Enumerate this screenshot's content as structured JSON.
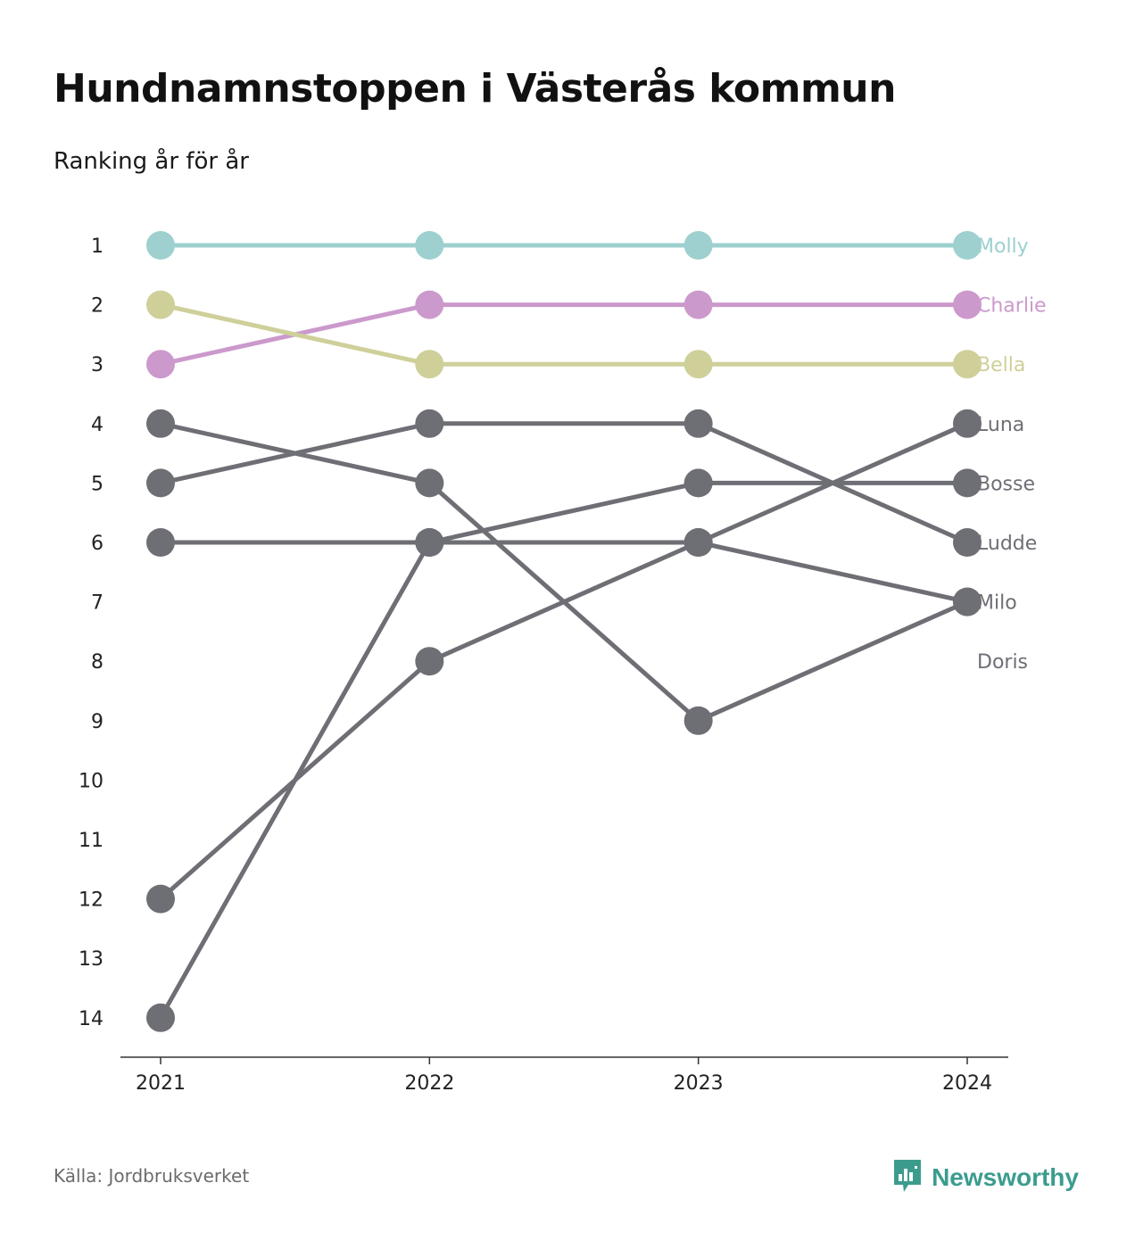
{
  "title": "Hundnamnstoppen i Västerås kommun",
  "subtitle": "Ranking år för år",
  "source": "Källa: Jordbruksverket",
  "brand": "Newsworthy",
  "chart_data": {
    "type": "line",
    "subtype": "bump",
    "x": [
      "2021",
      "2022",
      "2023",
      "2024"
    ],
    "y_ticks": [
      "1",
      "2",
      "3",
      "4",
      "5",
      "6",
      "7",
      "8",
      "9",
      "10",
      "11",
      "12",
      "13",
      "14"
    ],
    "ylim": [
      1,
      14
    ],
    "y_inverted": true,
    "grid": false,
    "legend": "direct labels at right end",
    "series": [
      {
        "name": "Molly",
        "values": [
          1,
          1,
          1,
          1
        ],
        "color": "#9dd0cf"
      },
      {
        "name": "Charlie",
        "values": [
          3,
          2,
          2,
          2
        ],
        "color": "#cc99cc"
      },
      {
        "name": "Bella",
        "values": [
          2,
          3,
          3,
          3
        ],
        "color": "#cfcf9a"
      },
      {
        "name": "Luna",
        "values": [
          14,
          6,
          6,
          4
        ],
        "color": "#6e6e75"
      },
      {
        "name": "Bosse",
        "values": [
          6,
          6,
          5,
          5
        ],
        "color": "#6e6e75"
      },
      {
        "name": "Ludde",
        "values": [
          5,
          4,
          4,
          6
        ],
        "color": "#6e6e75"
      },
      {
        "name": "Milo",
        "values": [
          12,
          8,
          6,
          7
        ],
        "color": "#6e6e75"
      },
      {
        "name": "Doris",
        "values": [
          4,
          5,
          9,
          7
        ],
        "color": "#6e6e75"
      }
    ]
  },
  "colors": {
    "highlight_1": "#9dd0cf",
    "highlight_2": "#cc99cc",
    "highlight_3": "#cfcf9a",
    "other": "#6e6e75",
    "brand": "#3b9c8e"
  }
}
